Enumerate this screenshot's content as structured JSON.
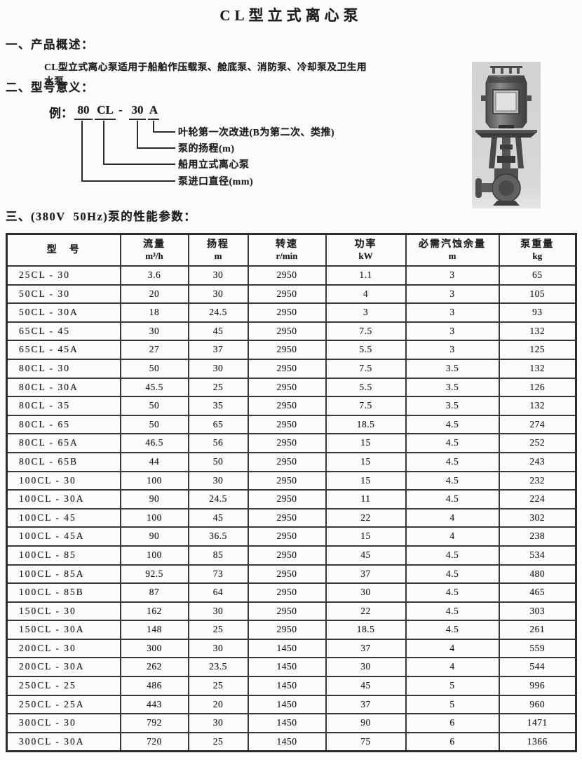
{
  "title": "CL型立式离心泵",
  "section1": {
    "heading": "一、产品概述：",
    "body": "CL型立式离心泵适用于船舶作压载泵、舱底泵、消防泵、冷却泵及卫生用水泵。"
  },
  "section2": {
    "heading": "二、型号意义：",
    "example": {
      "prefix": "例：",
      "inlet": "80",
      "series": "CL",
      "dash": "-",
      "head": "30",
      "variant": "A"
    },
    "labels": [
      "叶轮第一次改进(B为第二次、类推)",
      "泵的扬程(m)",
      "船用立式离心泵",
      "泵进口直径(mm)"
    ]
  },
  "section3": {
    "heading": "三、(380V  50Hz)泵的性能参数："
  },
  "table": {
    "headers": [
      {
        "label": "型　号",
        "unit": ""
      },
      {
        "label": "流量",
        "unit": "m³/h"
      },
      {
        "label": "扬程",
        "unit": "m"
      },
      {
        "label": "转速",
        "unit": "r/min"
      },
      {
        "label": "功率",
        "unit": "kW"
      },
      {
        "label": "必需汽蚀余量",
        "unit": "m"
      },
      {
        "label": "泵重量",
        "unit": "kg"
      }
    ],
    "rows": [
      [
        "25CL - 30",
        "3.6",
        "30",
        "2950",
        "1.1",
        "3",
        "65"
      ],
      [
        "50CL - 30",
        "20",
        "30",
        "2950",
        "4",
        "3",
        "105"
      ],
      [
        "50CL - 30A",
        "18",
        "24.5",
        "2950",
        "3",
        "3",
        "93"
      ],
      [
        "65CL - 45",
        "30",
        "45",
        "2950",
        "7.5",
        "3",
        "132"
      ],
      [
        "65CL - 45A",
        "27",
        "37",
        "2950",
        "5.5",
        "3",
        "125"
      ],
      [
        "80CL - 30",
        "50",
        "30",
        "2950",
        "7.5",
        "3.5",
        "132"
      ],
      [
        "80CL - 30A",
        "45.5",
        "25",
        "2950",
        "5.5",
        "3.5",
        "126"
      ],
      [
        "80CL - 35",
        "50",
        "35",
        "2950",
        "7.5",
        "3.5",
        "132"
      ],
      [
        "80CL - 65",
        "50",
        "65",
        "2950",
        "18.5",
        "4.5",
        "274"
      ],
      [
        "80CL - 65A",
        "46.5",
        "56",
        "2950",
        "15",
        "4.5",
        "252"
      ],
      [
        "80CL - 65B",
        "44",
        "50",
        "2950",
        "15",
        "4.5",
        "243"
      ],
      [
        "100CL - 30",
        "100",
        "30",
        "2950",
        "15",
        "4.5",
        "232"
      ],
      [
        "100CL - 30A",
        "90",
        "24.5",
        "2950",
        "11",
        "4.5",
        "224"
      ],
      [
        "100CL - 45",
        "100",
        "45",
        "2950",
        "22",
        "4",
        "302"
      ],
      [
        "100CL - 45A",
        "90",
        "36.5",
        "2950",
        "15",
        "4",
        "238"
      ],
      [
        "100CL - 85",
        "100",
        "85",
        "2950",
        "45",
        "4.5",
        "534"
      ],
      [
        "100CL - 85A",
        "92.5",
        "73",
        "2950",
        "37",
        "4.5",
        "480"
      ],
      [
        "100CL - 85B",
        "87",
        "64",
        "2950",
        "30",
        "4.5",
        "465"
      ],
      [
        "150CL - 30",
        "162",
        "30",
        "2950",
        "22",
        "4.5",
        "303"
      ],
      [
        "150CL - 30A",
        "148",
        "25",
        "2950",
        "18.5",
        "4.5",
        "261"
      ],
      [
        "200CL - 30",
        "300",
        "30",
        "1450",
        "37",
        "4",
        "559"
      ],
      [
        "200CL - 30A",
        "262",
        "23.5",
        "1450",
        "30",
        "4",
        "544"
      ],
      [
        "250CL - 25",
        "486",
        "25",
        "1450",
        "45",
        "5",
        "996"
      ],
      [
        "250CL - 25A",
        "443",
        "20",
        "1450",
        "37",
        "5",
        "960"
      ],
      [
        "300CL - 30",
        "792",
        "30",
        "1450",
        "90",
        "6",
        "1471"
      ],
      [
        "300CL - 30A",
        "720",
        "25",
        "1450",
        "75",
        "6",
        "1366"
      ]
    ]
  }
}
